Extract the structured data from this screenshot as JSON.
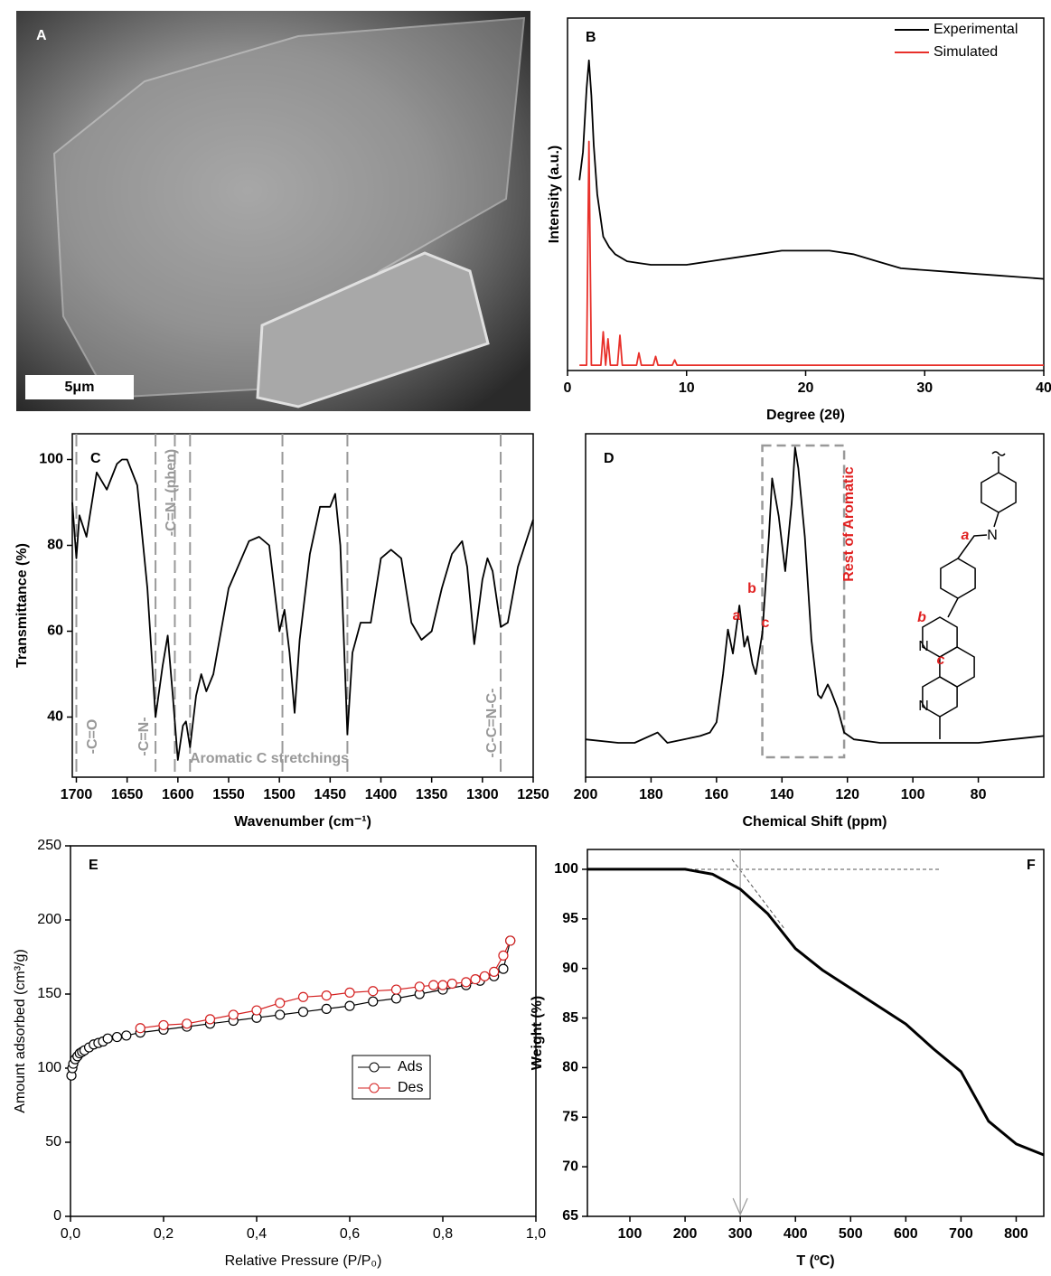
{
  "chart_data": [
    {
      "type": "image",
      "label": "A",
      "scale_bar": "5μm"
    },
    {
      "type": "line",
      "label": "B",
      "xlabel": "Degree (2θ)",
      "ylabel": "Intensity (a.u.)",
      "xlim": [
        0,
        40
      ],
      "xticks": [
        0,
        10,
        20,
        30,
        40
      ],
      "ylim": [
        0,
        100
      ],
      "legend": "upper right",
      "series": [
        {
          "name": "Experimental",
          "color": "#000000",
          "x": [
            1,
            1.3,
            1.6,
            1.8,
            2.0,
            2.2,
            2.5,
            3,
            3.5,
            4,
            5,
            6,
            7,
            8,
            10,
            12,
            14,
            16,
            18,
            20,
            22,
            24,
            26,
            28,
            30,
            32,
            34,
            36,
            38,
            40
          ],
          "values": [
            54,
            62,
            80,
            88,
            78,
            64,
            50,
            38,
            35,
            33,
            31,
            30.5,
            30,
            30,
            30,
            31,
            32,
            33,
            34,
            34,
            34,
            33,
            31,
            29,
            28.5,
            28,
            27.5,
            27,
            26.5,
            26
          ]
        },
        {
          "name": "Simulated",
          "color": "#e8302a",
          "x": [
            1,
            1.6,
            1.8,
            2.0,
            2.8,
            3.0,
            3.2,
            3.4,
            3.6,
            4.2,
            4.4,
            4.6,
            5.8,
            6.0,
            6.2,
            7.2,
            7.4,
            7.6,
            8.8,
            9.0,
            9.2,
            40
          ],
          "values": [
            1.5,
            1.5,
            65,
            1.5,
            1.5,
            11,
            1.5,
            9,
            1.5,
            1.5,
            10,
            1.5,
            1.5,
            5,
            1.5,
            1.5,
            4,
            1.5,
            1.5,
            3,
            1.5,
            1.5
          ]
        }
      ]
    },
    {
      "type": "line",
      "label": "C",
      "xlabel": "Wavenumber (cm⁻¹)",
      "ylabel": "Transmittance (%)",
      "xlim": [
        1704,
        1250
      ],
      "xticks": [
        1700,
        1650,
        1600,
        1550,
        1500,
        1450,
        1400,
        1350,
        1300,
        1250
      ],
      "ylim": [
        26,
        106
      ],
      "yticks": [
        40,
        60,
        80,
        100
      ],
      "marker_lines": [
        1700,
        1622,
        1603,
        1588,
        1497,
        1433,
        1282
      ],
      "annotations": [
        "-C=O",
        "-C=N-",
        "-C=N- (phen)",
        "Aromatic C stretchings",
        "-C-C=N-C-"
      ],
      "series": [
        {
          "color": "#000000",
          "x": [
            1704,
            1700,
            1697,
            1690,
            1680,
            1670,
            1660,
            1655,
            1650,
            1640,
            1630,
            1622,
            1615,
            1610,
            1605,
            1600,
            1595,
            1592,
            1588,
            1582,
            1577,
            1572,
            1565,
            1550,
            1530,
            1520,
            1510,
            1500,
            1495,
            1490,
            1485,
            1480,
            1470,
            1460,
            1450,
            1445,
            1440,
            1433,
            1428,
            1420,
            1410,
            1400,
            1390,
            1380,
            1370,
            1360,
            1350,
            1340,
            1330,
            1320,
            1315,
            1308,
            1300,
            1295,
            1290,
            1282,
            1275,
            1265,
            1250
          ],
          "values": [
            90,
            77,
            87,
            82,
            97,
            93,
            99,
            100,
            100,
            94,
            70,
            40,
            52,
            59,
            45,
            30,
            38,
            39,
            33,
            45,
            50,
            46,
            50,
            70,
            81,
            82,
            80,
            60,
            65,
            55,
            41,
            58,
            78,
            89,
            89,
            92,
            80,
            36,
            55,
            62,
            62,
            77,
            79,
            77,
            62,
            58,
            60,
            70,
            78,
            81,
            75,
            57,
            72,
            77,
            74,
            61,
            62,
            75,
            86
          ]
        }
      ]
    },
    {
      "type": "line",
      "label": "D",
      "xlabel": "Chemical Shift (ppm)",
      "xlim": [
        200,
        60
      ],
      "xticks": [
        200,
        180,
        160,
        140,
        120,
        100,
        80
      ],
      "ylim": [
        0,
        100
      ],
      "highlight_range": [
        146,
        121
      ],
      "annotations": [
        "a",
        "b",
        "c",
        "Rest of Aromatic"
      ],
      "structure_labels": [
        "a",
        "N",
        "b",
        "N",
        "c",
        "N"
      ],
      "series": [
        {
          "color": "#000000",
          "x": [
            200,
            190,
            185,
            178,
            175,
            170,
            165,
            162,
            160,
            158,
            156.5,
            155,
            153,
            151.5,
            150.5,
            149,
            148,
            146,
            144,
            143,
            141,
            139,
            137,
            136,
            135,
            133,
            131,
            129,
            128,
            126,
            125,
            123,
            121,
            118,
            110,
            100,
            90,
            80,
            70,
            60
          ],
          "values": [
            11,
            10,
            10,
            13,
            10,
            11,
            12,
            13,
            16,
            30,
            43,
            36,
            50,
            38,
            41,
            33,
            30,
            42,
            70,
            87,
            76,
            60,
            80,
            96,
            90,
            70,
            40,
            24,
            23,
            27,
            25,
            20,
            13,
            11,
            10,
            10,
            10,
            10,
            11,
            12
          ]
        }
      ]
    },
    {
      "type": "scatter",
      "label": "E",
      "xlabel": "Relative Pressure (P/P₀)",
      "ylabel": "Amount adsorbed (cm³/g)",
      "xlim": [
        0,
        1
      ],
      "xticks": [
        {
          "value": 0,
          "label": "0,0"
        },
        {
          "value": 0.2,
          "label": "0,2"
        },
        {
          "value": 0.4,
          "label": "0,4"
        },
        {
          "value": 0.6,
          "label": "0,6"
        },
        {
          "value": 0.8,
          "label": "0,8"
        },
        {
          "value": 1,
          "label": "1,0"
        }
      ],
      "ylim": [
        0,
        250
      ],
      "yticks": [
        0,
        50,
        100,
        150,
        200,
        250
      ],
      "legend": "center",
      "series": [
        {
          "name": "Ads",
          "color": "#000000",
          "x": [
            0.002,
            0.004,
            0.006,
            0.01,
            0.015,
            0.02,
            0.025,
            0.03,
            0.04,
            0.05,
            0.06,
            0.07,
            0.08,
            0.1,
            0.12,
            0.15,
            0.2,
            0.25,
            0.3,
            0.35,
            0.4,
            0.45,
            0.5,
            0.55,
            0.6,
            0.65,
            0.7,
            0.75,
            0.8,
            0.85,
            0.88,
            0.91,
            0.93,
            0.945
          ],
          "values": [
            95,
            100,
            103,
            106,
            108,
            110,
            111,
            112,
            114,
            116,
            117,
            118,
            120,
            121,
            122,
            124,
            126,
            128,
            130,
            132,
            134,
            136,
            138,
            140,
            142,
            145,
            147,
            150,
            153,
            156,
            159,
            162,
            167,
            186
          ]
        },
        {
          "name": "Des",
          "color": "#d42020",
          "x": [
            0.945,
            0.93,
            0.91,
            0.89,
            0.87,
            0.85,
            0.82,
            0.8,
            0.78,
            0.75,
            0.7,
            0.65,
            0.6,
            0.55,
            0.5,
            0.45,
            0.4,
            0.35,
            0.3,
            0.25,
            0.2,
            0.15
          ],
          "values": [
            186,
            176,
            165,
            162,
            160,
            158,
            157,
            156,
            156,
            155,
            153,
            152,
            151,
            149,
            148,
            144,
            139,
            136,
            133,
            130,
            129,
            127
          ]
        }
      ]
    },
    {
      "type": "line",
      "label": "F",
      "xlabel": "T (ºC)",
      "ylabel": "Weight (%)",
      "xlim": [
        23,
        850
      ],
      "xticks": [
        100,
        200,
        300,
        400,
        500,
        600,
        700,
        800
      ],
      "ylim": [
        65,
        102
      ],
      "yticks": [
        65,
        70,
        75,
        80,
        85,
        90,
        95,
        100
      ],
      "guides": [
        {
          "x": [
            23,
            660
          ],
          "y": [
            100,
            100
          ]
        },
        {
          "x": [
            285,
            380
          ],
          "y": [
            101,
            94
          ]
        }
      ],
      "onset_x": 300,
      "series": [
        {
          "color": "#000000",
          "x": [
            23,
            150,
            200,
            250,
            300,
            350,
            400,
            450,
            500,
            550,
            600,
            650,
            700,
            750,
            800,
            850
          ],
          "values": [
            100,
            100,
            100,
            99.5,
            98,
            95.5,
            92,
            89.8,
            88,
            86.2,
            84.4,
            81.9,
            79.6,
            74.6,
            72.3,
            71.2
          ]
        }
      ]
    }
  ]
}
